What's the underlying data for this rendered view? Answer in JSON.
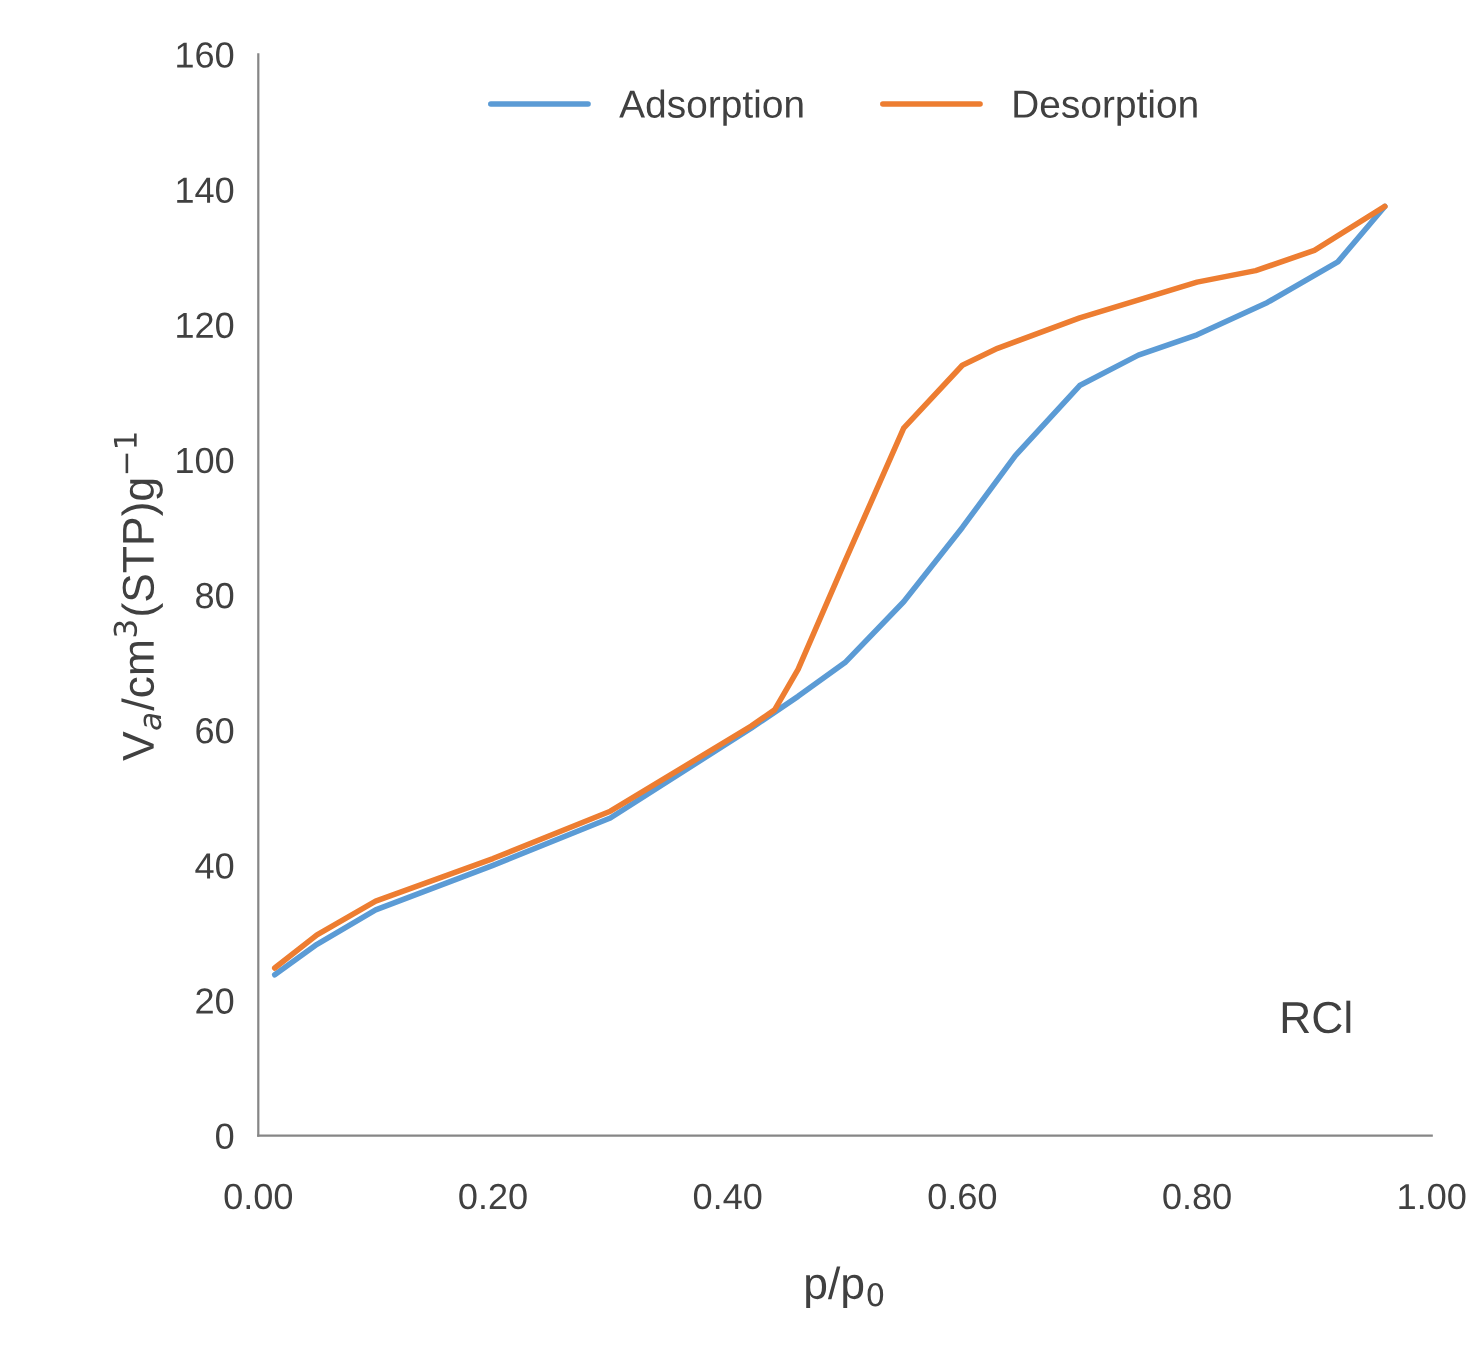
{
  "chart_data": {
    "type": "line",
    "xlabel": "p/p$_{0}$",
    "ylabel": "V$_{a}$/cm$^{3}$(STP)g$^{−1}$",
    "xlim": [
      0,
      1
    ],
    "xticks": [
      {
        "value": 0,
        "label": "0.00"
      },
      {
        "value": 0.2,
        "label": "0.20"
      },
      {
        "value": 0.4,
        "label": "0.40"
      },
      {
        "value": 0.6,
        "label": "0.60"
      },
      {
        "value": 0.8,
        "label": "0.80"
      },
      {
        "value": 1,
        "label": "1.00"
      }
    ],
    "ylim": [
      0,
      160
    ],
    "yticks": [
      0,
      20,
      40,
      60,
      80,
      100,
      120,
      140,
      160
    ],
    "grid": false,
    "legend": "top",
    "line_style": "solid",
    "annotations": [
      "RCl"
    ],
    "series": [
      {
        "name": "Adsorption",
        "color": "#5b9bd5",
        "x": [
          0.014,
          0.05,
          0.1,
          0.2,
          0.3,
          0.42,
          0.46,
          0.5,
          0.55,
          0.6,
          0.645,
          0.7,
          0.75,
          0.8,
          0.86,
          0.92,
          0.96
        ],
        "values": [
          23.8,
          28.3,
          33.4,
          40,
          47,
          60.3,
          65,
          70,
          79,
          90,
          100.6,
          111,
          115.5,
          118.5,
          123.3,
          129.3,
          137.5
        ]
      },
      {
        "name": "Desorption",
        "color": "#ed7d31",
        "x": [
          0.014,
          0.05,
          0.1,
          0.2,
          0.3,
          0.42,
          0.44,
          0.46,
          0.5,
          0.55,
          0.6,
          0.63,
          0.7,
          0.8,
          0.85,
          0.9,
          0.96
        ],
        "values": [
          24.8,
          29.7,
          34.7,
          41,
          48,
          60.6,
          63,
          69,
          85,
          104.7,
          114,
          116.5,
          121,
          126.3,
          128,
          131,
          137.5
        ]
      }
    ]
  }
}
